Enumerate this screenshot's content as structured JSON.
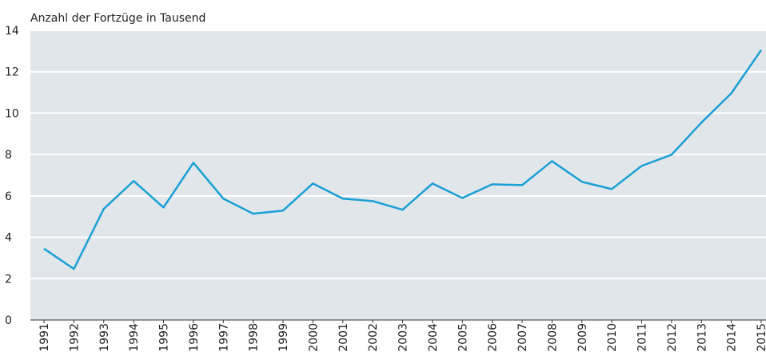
{
  "chart_data": {
    "type": "line",
    "title": "Anzahl der Fortzüge in Tausend",
    "categories": [
      "1991",
      "1992",
      "1993",
      "1994",
      "1995",
      "1996",
      "1997",
      "1998",
      "1999",
      "2000",
      "2001",
      "2002",
      "2003",
      "2004",
      "2005",
      "2006",
      "2007",
      "2008",
      "2009",
      "2010",
      "2011",
      "2012",
      "2013",
      "2014",
      "2015"
    ],
    "series": [
      {
        "name": null,
        "color": "#1a9fd4",
        "values": [
          3.45,
          2.47,
          5.37,
          6.72,
          5.44,
          7.6,
          5.87,
          5.14,
          5.29,
          6.6,
          5.87,
          5.75,
          5.33,
          6.6,
          5.9,
          6.56,
          6.52,
          7.68,
          6.68,
          6.33,
          7.45,
          7.99,
          9.54,
          10.96,
          13.05
        ]
      }
    ],
    "ylim": [
      0,
      14
    ],
    "yticks": [
      0,
      2,
      4,
      6,
      8,
      10,
      12,
      14
    ],
    "grid": true
  }
}
